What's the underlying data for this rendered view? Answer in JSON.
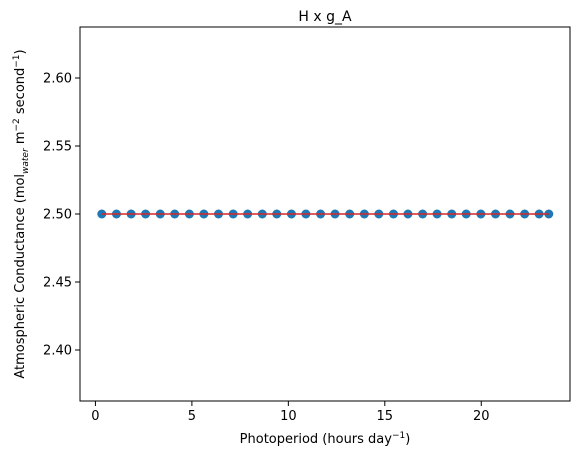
{
  "chart_data": {
    "type": "scatter",
    "title": "H x g_A",
    "xlabel": {
      "base": "Photoperiod (hours day",
      "sup": "−1",
      "close": ")"
    },
    "ylabel": {
      "p1": "Atmospheric Conductance (mol",
      "sub": "water",
      "p2": " m",
      "sup1": "−2",
      "p3": " second",
      "sup2": "−1",
      "p4": ")"
    },
    "xlim": [
      -0.8,
      24.6
    ],
    "ylim": [
      2.3625,
      2.6375
    ],
    "xticks": [
      0,
      5,
      10,
      15,
      20
    ],
    "xtick_labels": [
      "0",
      "5",
      "10",
      "15",
      "20"
    ],
    "yticks": [
      2.4,
      2.45,
      2.5,
      2.55,
      2.6
    ],
    "ytick_labels": [
      "2.40",
      "2.45",
      "2.50",
      "2.55",
      "2.60"
    ],
    "grid": false,
    "series": [
      {
        "kind": "scatter",
        "color": "#1f77b4",
        "x": [
          0.33,
          1.09,
          1.85,
          2.6,
          3.36,
          4.11,
          4.87,
          5.62,
          6.38,
          7.14,
          7.89,
          8.65,
          9.4,
          10.16,
          10.91,
          11.67,
          12.42,
          13.18,
          13.94,
          14.69,
          15.45,
          16.2,
          16.96,
          17.71,
          18.47,
          19.22,
          19.98,
          20.74,
          21.49,
          22.25,
          23.0,
          23.5
        ],
        "y": [
          2.5,
          2.5,
          2.5,
          2.5,
          2.5,
          2.5,
          2.5,
          2.5,
          2.5,
          2.5,
          2.5,
          2.5,
          2.5,
          2.5,
          2.5,
          2.5,
          2.5,
          2.5,
          2.5,
          2.5,
          2.5,
          2.5,
          2.5,
          2.5,
          2.5,
          2.5,
          2.5,
          2.5,
          2.5,
          2.5,
          2.5,
          2.5
        ]
      },
      {
        "kind": "line",
        "color": "#d62728",
        "x": [
          0.33,
          23.5
        ],
        "y": [
          2.5,
          2.5
        ]
      }
    ]
  }
}
